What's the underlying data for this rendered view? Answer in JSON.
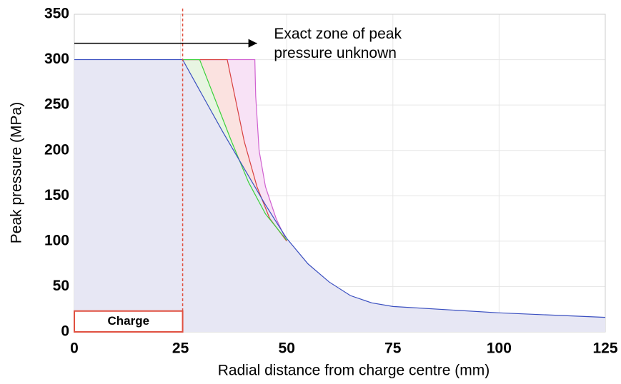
{
  "chart_data": {
    "type": "line",
    "xlabel": "Radial distance from charge centre (mm)",
    "ylabel": "Peak pressure (MPa)",
    "xlim": [
      0,
      125
    ],
    "ylim": [
      0,
      350
    ],
    "xticks": [
      0,
      25,
      50,
      75,
      100,
      125
    ],
    "yticks": [
      0,
      50,
      100,
      150,
      200,
      250,
      300,
      350
    ],
    "grid": true,
    "series": [
      {
        "color": "#d060d0",
        "fill": "#f8e2f6",
        "x": [
          25.5,
          42.5,
          42.7,
          43.5,
          45,
          47.5,
          50
        ],
        "values": [
          300,
          300,
          260,
          200,
          160,
          125,
          100
        ]
      },
      {
        "color": "#d84040",
        "fill": "#fbe2e0",
        "x": [
          25.5,
          36,
          38,
          40,
          43,
          46,
          50
        ],
        "values": [
          300,
          300,
          255,
          210,
          160,
          125,
          100
        ]
      },
      {
        "color": "#3bd13b",
        "fill": "#e8f5e2",
        "x": [
          25.5,
          29.5,
          33,
          37,
          41,
          45,
          50
        ],
        "values": [
          300,
          300,
          258,
          210,
          165,
          130,
          101
        ]
      },
      {
        "color": "#3a4fc0",
        "fill": "#e7e7f4",
        "x": [
          0,
          25.5,
          30,
          35,
          40,
          45,
          50,
          55,
          60,
          65,
          70,
          75,
          100,
          125
        ],
        "values": [
          300,
          300,
          262,
          220,
          180,
          140,
          103,
          75,
          55,
          40,
          32,
          28,
          21,
          16
        ]
      }
    ],
    "vline": 25.5,
    "charge": {
      "label": "Charge",
      "x": [
        0,
        25.5
      ],
      "height": 23
    },
    "arrow": {
      "x": [
        0,
        43
      ],
      "y": 318
    },
    "annotation": {
      "lines": [
        "Exact zone of peak",
        "pressure unknown"
      ],
      "x": 47,
      "y": 318
    }
  }
}
